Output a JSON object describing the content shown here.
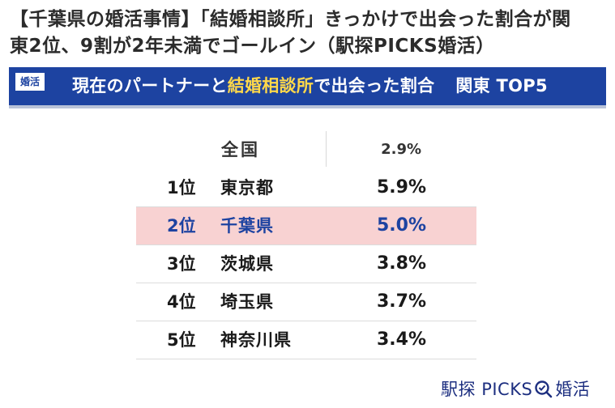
{
  "headline": {
    "line1": "【千葉県の婚活事情】「結婚相談所」きっかけで出会った割合が関",
    "line2": "東2位、9割が2年未満でゴールイン（駅探PICKS婚活）"
  },
  "banner": {
    "badge": "婚活",
    "title_prefix": "現在のパートナーと",
    "title_highlight": "結婚相談所",
    "title_suffix": "で出会った割合",
    "region": "関東 TOP5"
  },
  "table": {
    "national": {
      "label": "全国",
      "value": "2.9%"
    },
    "rows": [
      {
        "rank": "1位",
        "prefecture": "東京都",
        "value": "5.9%"
      },
      {
        "rank": "2位",
        "prefecture": "千葉県",
        "value": "5.0%"
      },
      {
        "rank": "3位",
        "prefecture": "茨城県",
        "value": "3.8%"
      },
      {
        "rank": "4位",
        "prefecture": "埼玉県",
        "value": "3.7%"
      },
      {
        "rank": "5位",
        "prefecture": "神奈川県",
        "value": "3.4%"
      }
    ],
    "highlight_color": "#f8d2d2",
    "highlight_text_color": "#1d43a1"
  },
  "logo": {
    "left": "駅探",
    "right": "PICKS",
    "suffix": "婚活",
    "icon": "magnifier-check-icon"
  },
  "colors": {
    "banner": "#1d43a1",
    "accent": "#ffd84a"
  }
}
